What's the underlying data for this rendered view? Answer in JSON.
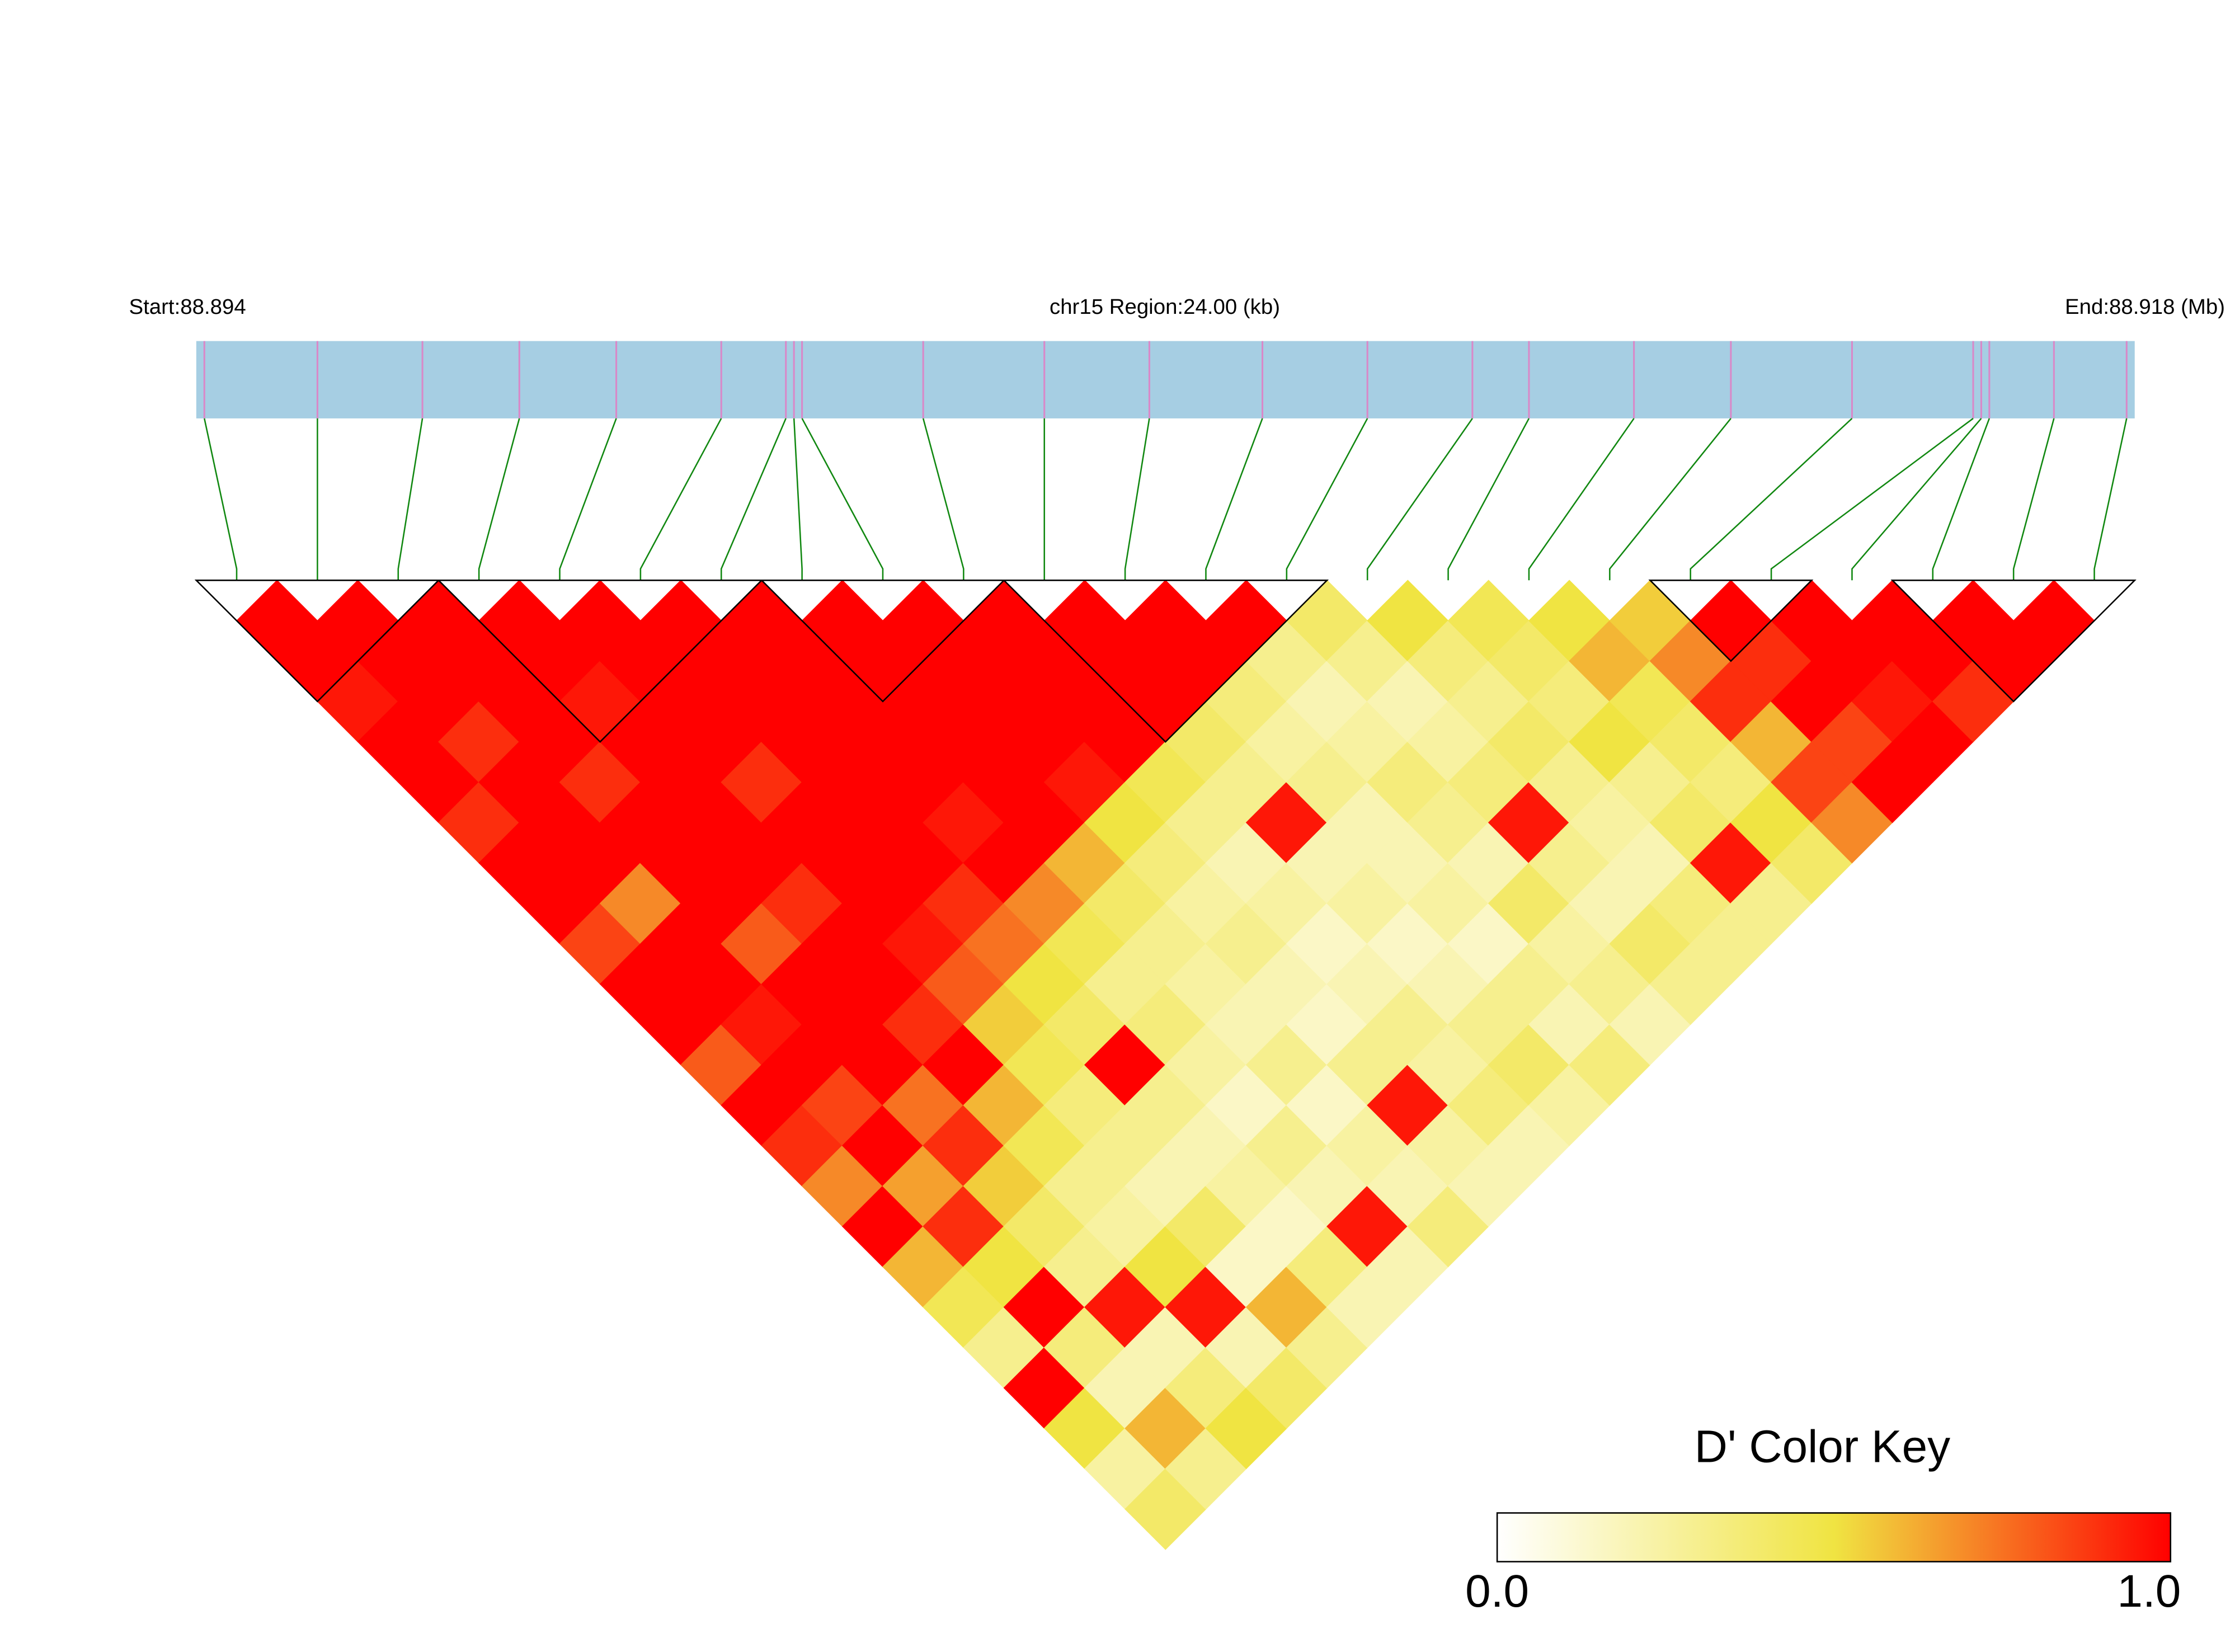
{
  "chart_data": {
    "type": "ld_heatmap",
    "start": {
      "value": 88.894,
      "label": "Start:88.894"
    },
    "end": {
      "value": 88.918,
      "label": "End:88.918 (Mb)"
    },
    "region_label": "chr15 Region:24.00 (kb)",
    "positions": [
      88.8941,
      88.8955,
      88.8968,
      88.898,
      88.8992,
      88.9005,
      88.9013,
      88.9014,
      88.9015,
      88.903,
      88.9045,
      88.9058,
      88.9072,
      88.9085,
      88.9098,
      88.9105,
      88.9118,
      88.913,
      88.9145,
      88.916,
      88.9161,
      88.9162,
      88.917,
      88.9179
    ],
    "dprime": [
      [
        1,
        1,
        0.95,
        1,
        1,
        0.9,
        1,
        1,
        0.85,
        1,
        1,
        0.8,
        1,
        0.9,
        0.7,
        1,
        0.6,
        0.45,
        0.3,
        1,
        0.5,
        0.25,
        0.4
      ],
      [
        1,
        1,
        1,
        0.9,
        1,
        1,
        1,
        0.7,
        1,
        1,
        0.95,
        1,
        0.85,
        1,
        0.65,
        0.9,
        0.5,
        1,
        0.35,
        0.2,
        0.6,
        0.3
      ],
      [
        1,
        1,
        1,
        1,
        0.9,
        1,
        1,
        1,
        0.8,
        1,
        1,
        1,
        0.75,
        0.9,
        0.55,
        0.4,
        0.3,
        0.95,
        0.2,
        0.35,
        0.5
      ],
      [
        1,
        1,
        0.95,
        1,
        1,
        1,
        1,
        0.9,
        1,
        1,
        0.9,
        1,
        0.6,
        0.45,
        0.3,
        0.25,
        0.5,
        0.95,
        0.2,
        0.4
      ],
      [
        1,
        1,
        1,
        1,
        0.9,
        1,
        1,
        1,
        0.95,
        0.8,
        0.55,
        0.45,
        0.35,
        0.3,
        0.2,
        0.4,
        0.15,
        0.6,
        0.3
      ],
      [
        1,
        1,
        1,
        1,
        1,
        1,
        1,
        0.9,
        0.75,
        0.5,
        0.4,
        1,
        0.3,
        0.2,
        0.25,
        0.15,
        0.35,
        0.2
      ],
      [
        1,
        1,
        1,
        1,
        1,
        0.95,
        1,
        0.7,
        0.45,
        0.3,
        0.35,
        0.25,
        0.15,
        0.3,
        0.2,
        0.95,
        0.2
      ],
      [
        1,
        1,
        1,
        1,
        1,
        1,
        0.6,
        0.4,
        0.3,
        0.25,
        0.2,
        0.3,
        0.15,
        0.25,
        0.2,
        0.35
      ],
      [
        1,
        1,
        1,
        1,
        0.95,
        0.5,
        0.35,
        0.25,
        0.3,
        0.2,
        0.15,
        0.3,
        0.95,
        0.25,
        0.2
      ],
      [
        1,
        1,
        1,
        1,
        0.45,
        0.3,
        0.2,
        0.25,
        0.15,
        0.2,
        0.3,
        0.25,
        0.35,
        0.2
      ],
      [
        1,
        1,
        1,
        0.4,
        0.3,
        0.95,
        0.2,
        0.25,
        0.15,
        0.2,
        0.3,
        0.4,
        0.25
      ],
      [
        1,
        1,
        0.35,
        0.25,
        0.3,
        0.2,
        0.2,
        0.25,
        0.15,
        0.3,
        0.2,
        0.35
      ],
      [
        1,
        0.3,
        0.2,
        0.25,
        0.35,
        0.3,
        0.2,
        0.4,
        0.25,
        0.3,
        0.2
      ],
      [
        0.4,
        0.3,
        0.2,
        0.25,
        0.35,
        0.95,
        0.3,
        0.2,
        0.4,
        0.3
      ],
      [
        0.5,
        0.35,
        0.3,
        0.4,
        0.3,
        0.25,
        0.2,
        0.35,
        0.3
      ],
      [
        0.45,
        0.4,
        0.35,
        0.5,
        0.3,
        0.4,
        0.95,
        0.3
      ],
      [
        0.5,
        0.6,
        0.45,
        0.4,
        0.35,
        0.5,
        0.4
      ],
      [
        0.55,
        0.7,
        0.9,
        0.6,
        0.85,
        0.7
      ],
      [
        1,
        0.9,
        1,
        0.85,
        1
      ],
      [
        1,
        1,
        0.95,
        1
      ],
      [
        1,
        1,
        0.9
      ],
      [
        1,
        1
      ],
      [
        1
      ]
    ],
    "blocks": [
      [
        0,
        2
      ],
      [
        3,
        6
      ],
      [
        7,
        9
      ],
      [
        10,
        13
      ],
      [
        18,
        19
      ],
      [
        21,
        23
      ]
    ],
    "bar_color": "#a6cee3",
    "snp_tick_color": "#d988c8",
    "link_color": "#118811",
    "color_key": {
      "title": "D' Color Key",
      "min": {
        "value": 0,
        "label": "0.0"
      },
      "max": {
        "value": 1,
        "label": "1.0"
      },
      "colors": [
        "#ffffff",
        "#f0e442",
        "#ff0000"
      ]
    }
  }
}
